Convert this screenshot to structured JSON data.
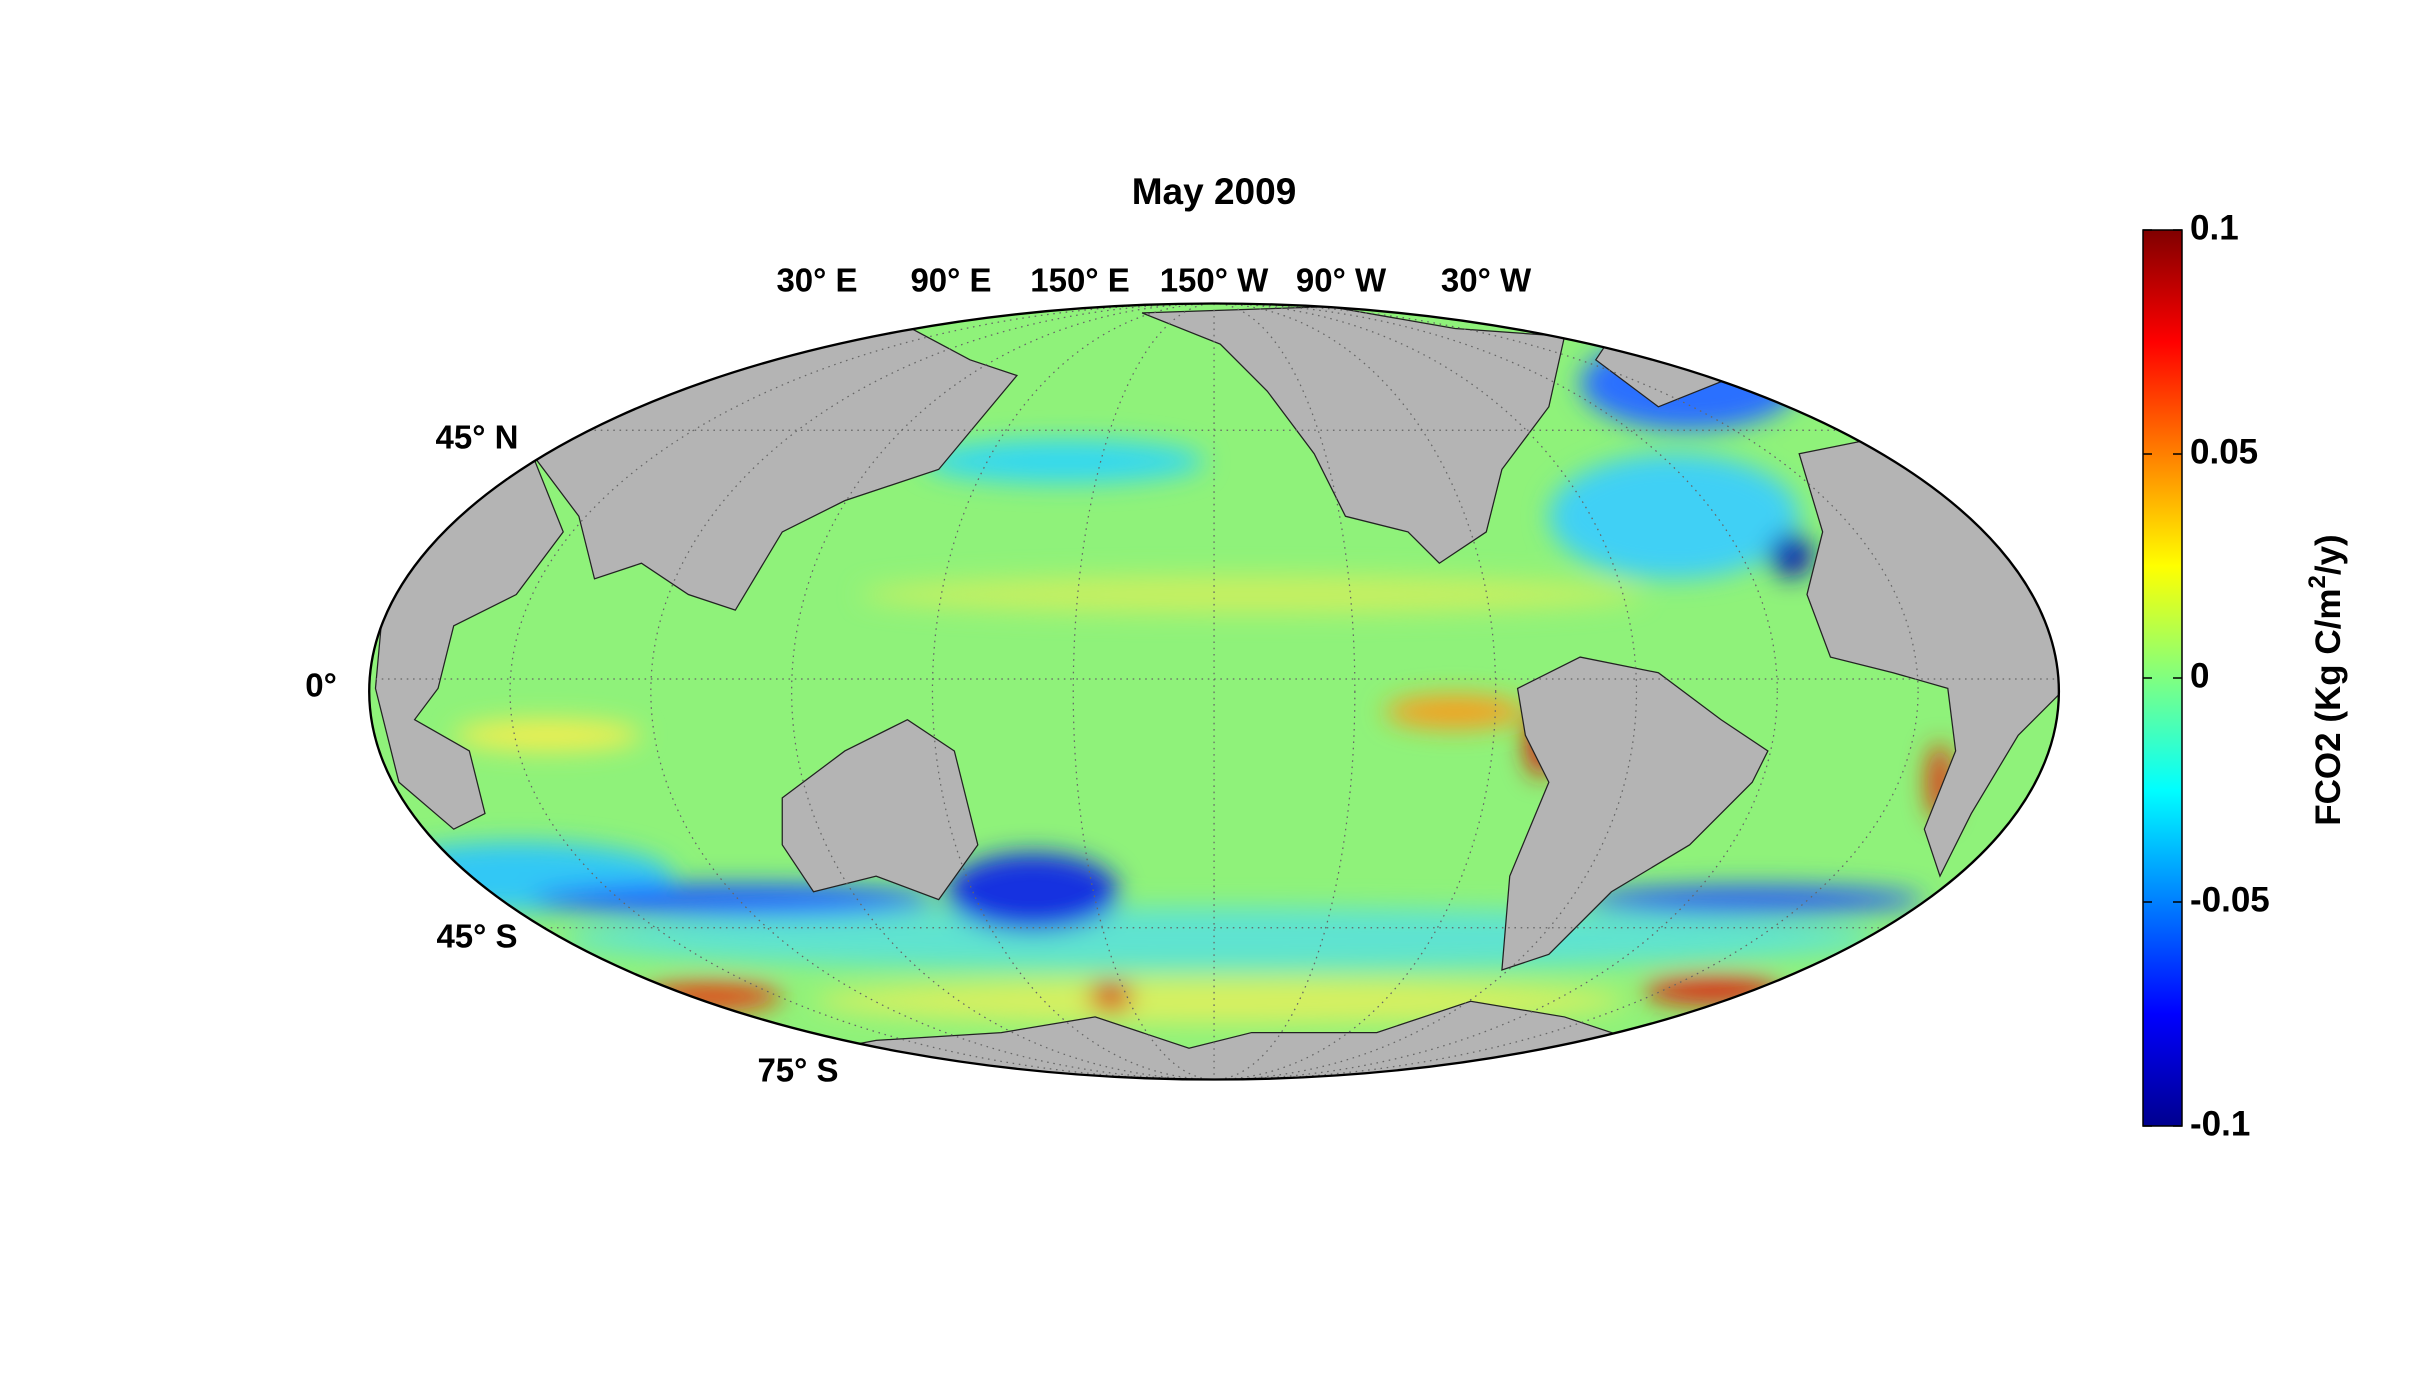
{
  "map": {
    "title": "May 2009",
    "lon_labels": [
      "30° E",
      "90° E",
      "150° E",
      "150° W",
      "90° W",
      "30° W"
    ],
    "lat_labels": [
      "45° N",
      "0°",
      "45° S",
      "75° S"
    ],
    "colorbar": {
      "label": "FCO2 (Kg C/m",
      "label_sup": "2",
      "label_end": "/y)",
      "clim": [
        -0.1,
        0.1
      ],
      "ticks": [
        -0.1,
        -0.05,
        0,
        0.05,
        0.1
      ]
    }
  }
}
